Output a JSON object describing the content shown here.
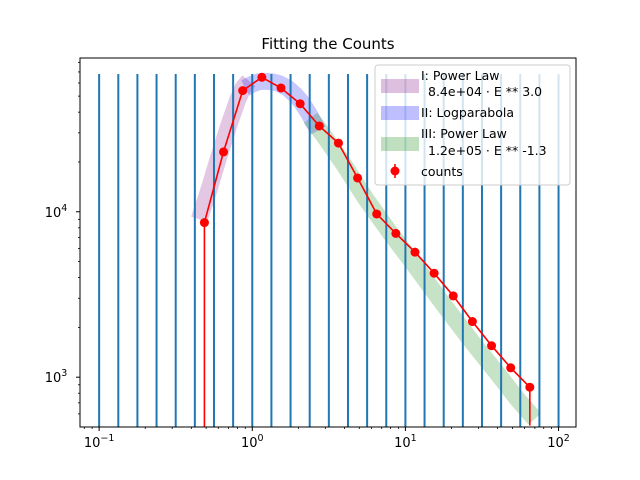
{
  "chart_data": {
    "type": "line",
    "title": "Fitting the Counts",
    "xlabel": "",
    "ylabel": "",
    "xscale": "log",
    "yscale": "log",
    "xlim": [
      0.075,
      130
    ],
    "ylim": [
      500,
      85000
    ],
    "x_ticks": [
      {
        "value": 0.1,
        "base": "10",
        "exp": "−1"
      },
      {
        "value": 1,
        "base": "10",
        "exp": "0"
      },
      {
        "value": 10,
        "base": "10",
        "exp": "1"
      },
      {
        "value": 100,
        "base": "10",
        "exp": "2"
      }
    ],
    "y_ticks": [
      {
        "value": 1000,
        "base": "10",
        "exp": "3"
      },
      {
        "value": 10000,
        "base": "10",
        "exp": "4"
      }
    ],
    "grid": false,
    "legend_position": "top-right",
    "bin_edges": [
      0.1,
      0.1334,
      0.1778,
      0.2371,
      0.3162,
      0.4217,
      0.5623,
      0.7499,
      1.0,
      1.3335,
      1.7783,
      2.3714,
      3.1623,
      4.217,
      5.6234,
      7.4989,
      10.0,
      13.335,
      17.783,
      23.714,
      31.623,
      42.17,
      56.234,
      74.989,
      100.0
    ],
    "bin_edges_top": 68000,
    "counts": {
      "name": "counts",
      "color": "#ff0000",
      "x": [
        0.487,
        0.649,
        0.866,
        1.155,
        1.54,
        2.054,
        2.738,
        3.652,
        4.87,
        6.494,
        8.66,
        11.548,
        15.399,
        20.535,
        27.384,
        36.517,
        48.696,
        64.937
      ],
      "y": [
        8600,
        23000,
        54000,
        65000,
        56000,
        45000,
        33000,
        26000,
        16000,
        9700,
        7400,
        5700,
        4250,
        3100,
        2170,
        1550,
        1140,
        870
      ],
      "yerr_low": [
        8100,
        0,
        0,
        0,
        0,
        0,
        0,
        0,
        0,
        0,
        0,
        0,
        0,
        0,
        0,
        0,
        0,
        360
      ],
      "yerr_high": [
        0,
        0,
        0,
        0,
        0,
        0,
        0,
        0,
        0,
        0,
        0,
        0,
        0,
        0,
        0,
        0,
        0,
        0
      ]
    },
    "fits": [
      {
        "name": "I: Power Law",
        "formula": "8.4e+04 · E ** 3.0",
        "color": "#800080",
        "x": [
          0.45,
          0.52,
          0.6,
          0.7,
          0.8,
          0.87,
          0.95
        ],
        "y": [
          9000,
          13500,
          21000,
          33000,
          47000,
          56000,
          62000
        ]
      },
      {
        "name": "II: Logparabola",
        "formula": "",
        "color": "#0000ff",
        "x": [
          0.9,
          1.0,
          1.1,
          1.2,
          1.35,
          1.5,
          1.7,
          1.9,
          2.1,
          2.35,
          2.7
        ],
        "y": [
          56000,
          59000,
          61000,
          61500,
          61000,
          59500,
          56000,
          51000,
          46000,
          39000,
          31000
        ]
      },
      {
        "name": "III: Power Law",
        "formula": "1.2e+05 · E ** -1.3",
        "color": "#008000",
        "x": [
          2.4,
          3.0,
          4.0,
          5.5,
          8.0,
          12.0,
          18.0,
          27.0,
          40.0,
          55.0,
          70.0
        ],
        "y": [
          37000,
          28000,
          19000,
          12000,
          7400,
          4500,
          2700,
          1650,
          1050,
          720,
          560
        ]
      }
    ]
  }
}
